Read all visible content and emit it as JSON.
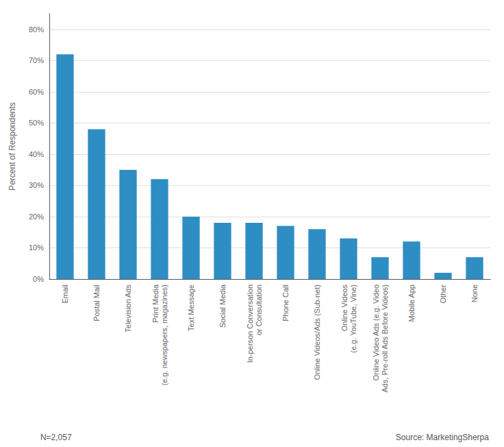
{
  "chart_data": {
    "type": "bar",
    "categories": [
      "Email",
      "Postal Mail",
      "Television Ads",
      "Print Media\n(e.g. newspapers, magazines)",
      "Text Message",
      "Social Media",
      "In-person Conversation\nor Consultation",
      "Phone Call",
      "Online Videos/Ads (Sub-net)",
      "Online Videos\n(e.g. YouTube, Vine)",
      "Online Video Ads (e.g. Video\nAds, Pre-roll Ads Before Videos)",
      "Mobile App",
      "Other",
      "None"
    ],
    "values": [
      72,
      48,
      35,
      32,
      20,
      18,
      18,
      17,
      16,
      13,
      7,
      12,
      2,
      7
    ],
    "color": "#2e8ec4",
    "ylabel": "Percent of Respondents",
    "ylim": [
      0,
      85
    ],
    "yticks": [
      {
        "value": 0,
        "label": "0%"
      },
      {
        "value": 10,
        "label": "10%"
      },
      {
        "value": 20,
        "label": "20%"
      },
      {
        "value": 30,
        "label": "30%"
      },
      {
        "value": 40,
        "label": "40%"
      },
      {
        "value": 50,
        "label": "50%"
      },
      {
        "value": 60,
        "label": "60%"
      },
      {
        "value": 70,
        "label": "70%"
      },
      {
        "value": 80,
        "label": "80%"
      }
    ],
    "grid": true,
    "annotations": [
      "N=2,057",
      "Source: MarketingSherpa"
    ]
  }
}
